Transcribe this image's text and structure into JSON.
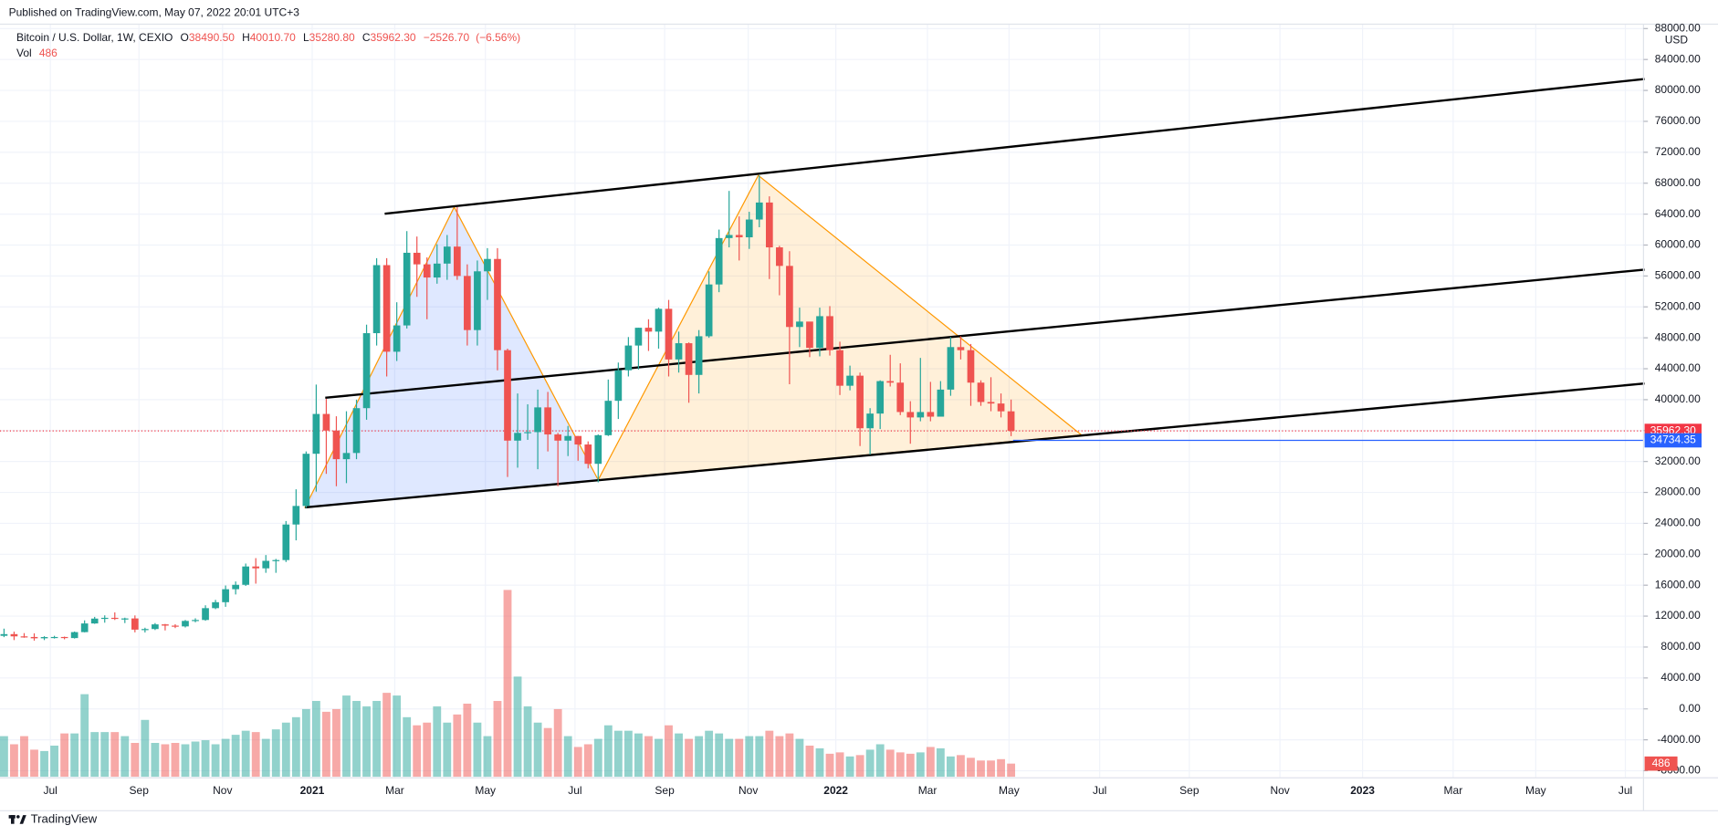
{
  "chart_data": {
    "type": "candlestick",
    "published": "Published on TradingView.com, May 07, 2022 20:01 UTC+3",
    "symbol": "Bitcoin / U.S. Dollar, 1W, CEXIO",
    "ohlc_header": [
      {
        "key": "O",
        "value": 38490.5,
        "label": "38490.50"
      },
      {
        "key": "H",
        "value": 40010.7,
        "label": "40010.70"
      },
      {
        "key": "L",
        "value": 35280.8,
        "label": "35280.80"
      },
      {
        "key": "C",
        "value": 35962.3,
        "label": "35962.30"
      }
    ],
    "change": {
      "value": -2526.7,
      "label": "−2526.70"
    },
    "change_pct": {
      "value": -6.56,
      "label": "(−6.56%)"
    },
    "volume_title": "Vol",
    "volume_last": 486,
    "currency": "USD",
    "brand": "TradingView",
    "up_color": "#26a69a",
    "down_color": "#ef5350",
    "ohlc": [
      [
        9450,
        10380,
        9280,
        9670
      ],
      [
        9670,
        9990,
        8900,
        9380
      ],
      [
        9380,
        9800,
        9200,
        9300
      ],
      [
        9300,
        9770,
        8830,
        9130
      ],
      [
        9130,
        9400,
        8900,
        9290
      ],
      [
        9290,
        9450,
        9100,
        9300
      ],
      [
        9300,
        9350,
        9000,
        9160
      ],
      [
        9160,
        10000,
        9100,
        9930
      ],
      [
        9930,
        11450,
        9900,
        11050
      ],
      [
        11050,
        11900,
        11000,
        11680
      ],
      [
        11680,
        12100,
        11150,
        11780
      ],
      [
        11780,
        12480,
        11500,
        11650
      ],
      [
        11650,
        11800,
        11100,
        11700
      ],
      [
        11700,
        12090,
        9900,
        10250
      ],
      [
        10250,
        10500,
        9880,
        10330
      ],
      [
        10330,
        11100,
        10200,
        10930
      ],
      [
        10930,
        10990,
        10150,
        10770
      ],
      [
        10770,
        10950,
        10450,
        10670
      ],
      [
        10670,
        11500,
        10530,
        11380
      ],
      [
        11380,
        11720,
        11200,
        11500
      ],
      [
        11500,
        13400,
        11400,
        13030
      ],
      [
        13030,
        14100,
        12900,
        13800
      ],
      [
        13800,
        15960,
        13200,
        15480
      ],
      [
        15480,
        16480,
        14800,
        16050
      ],
      [
        16050,
        18800,
        15900,
        18420
      ],
      [
        18420,
        19500,
        16200,
        18180
      ],
      [
        18180,
        19900,
        17600,
        19150
      ],
      [
        19150,
        19400,
        17600,
        19250
      ],
      [
        19250,
        24300,
        19000,
        23850
      ],
      [
        23850,
        28400,
        21800,
        26250
      ],
      [
        26250,
        33300,
        26000,
        33000
      ],
      [
        33000,
        41950,
        28100,
        38150
      ],
      [
        38150,
        40100,
        30400,
        36000
      ],
      [
        36000,
        37850,
        28800,
        32300
      ],
      [
        32300,
        38500,
        29200,
        33100
      ],
      [
        33100,
        40000,
        32300,
        38900
      ],
      [
        38900,
        49700,
        37400,
        48600
      ],
      [
        48600,
        58300,
        47000,
        57400
      ],
      [
        57400,
        58300,
        43000,
        46200
      ],
      [
        46200,
        52600,
        45000,
        49600
      ],
      [
        49600,
        61800,
        49200,
        59000
      ],
      [
        59000,
        61100,
        53300,
        57500
      ],
      [
        57500,
        58400,
        50400,
        55800
      ],
      [
        55800,
        60100,
        55000,
        57600
      ],
      [
        57600,
        61300,
        55500,
        59800
      ],
      [
        59800,
        64900,
        55500,
        56000
      ],
      [
        56000,
        57500,
        47000,
        49000
      ],
      [
        49000,
        58000,
        47000,
        56600
      ],
      [
        56600,
        59600,
        52900,
        58200
      ],
      [
        58200,
        59600,
        43800,
        46400
      ],
      [
        46400,
        46600,
        30000,
        34700
      ],
      [
        34700,
        40800,
        31200,
        35700
      ],
      [
        35700,
        39400,
        34800,
        35800
      ],
      [
        35800,
        41300,
        31000,
        39000
      ],
      [
        39000,
        41000,
        33300,
        35500
      ],
      [
        35500,
        35700,
        28800,
        34700
      ],
      [
        34700,
        36600,
        32700,
        35300
      ],
      [
        35300,
        35300,
        32100,
        34200
      ],
      [
        34200,
        34600,
        31100,
        31700
      ],
      [
        31700,
        35500,
        29300,
        35400
      ],
      [
        35400,
        42600,
        35300,
        39850
      ],
      [
        39850,
        44800,
        37500,
        43800
      ],
      [
        43800,
        48100,
        43000,
        47000
      ],
      [
        47000,
        49300,
        43900,
        49300
      ],
      [
        49300,
        50400,
        46300,
        48800
      ],
      [
        48800,
        51900,
        46600,
        51750
      ],
      [
        51750,
        52900,
        43000,
        45200
      ],
      [
        45200,
        48800,
        43500,
        47300
      ],
      [
        47300,
        47400,
        39600,
        43200
      ],
      [
        43200,
        49000,
        40800,
        48200
      ],
      [
        48200,
        56600,
        48000,
        54900
      ],
      [
        54900,
        62000,
        53900,
        60900
      ],
      [
        60900,
        67000,
        59700,
        61300
      ],
      [
        61300,
        63700,
        58000,
        61000
      ],
      [
        61000,
        64300,
        59500,
        63300
      ],
      [
        63300,
        69000,
        62300,
        65500
      ],
      [
        65500,
        66300,
        55600,
        59700
      ],
      [
        59700,
        59900,
        53500,
        57300
      ],
      [
        57300,
        59200,
        42000,
        49400
      ],
      [
        49400,
        51900,
        46800,
        50100
      ],
      [
        50100,
        50000,
        45500,
        46700
      ],
      [
        46700,
        51900,
        45600,
        50800
      ],
      [
        50800,
        52100,
        45700,
        46400
      ],
      [
        46400,
        47500,
        40600,
        41800
      ],
      [
        41800,
        44400,
        41200,
        43100
      ],
      [
        43100,
        43500,
        34000,
        36300
      ],
      [
        36300,
        38900,
        32900,
        38200
      ],
      [
        38200,
        42500,
        36200,
        42400
      ],
      [
        42400,
        45800,
        41700,
        42200
      ],
      [
        42200,
        44700,
        38000,
        38400
      ],
      [
        38400,
        39800,
        34300,
        37700
      ],
      [
        37700,
        45400,
        37200,
        38400
      ],
      [
        38400,
        42300,
        37200,
        37800
      ],
      [
        37800,
        42400,
        38000,
        41300
      ],
      [
        41300,
        48100,
        40500,
        46800
      ],
      [
        46800,
        48200,
        45200,
        46400
      ],
      [
        46400,
        47200,
        39200,
        42200
      ],
      [
        42200,
        42500,
        39200,
        39700
      ],
      [
        39700,
        42900,
        38500,
        39500
      ],
      [
        39500,
        40800,
        37700,
        38490
      ],
      [
        38490.5,
        40010.7,
        35280.8,
        35962.3
      ]
    ],
    "volume": [
      1500,
      1200,
      1500,
      1000,
      950,
      1150,
      1600,
      1600,
      3050,
      1650,
      1650,
      1650,
      1500,
      1250,
      2100,
      1250,
      1200,
      1250,
      1200,
      1300,
      1350,
      1200,
      1400,
      1550,
      1700,
      1650,
      1400,
      1750,
      2000,
      2200,
      2500,
      2800,
      2400,
      2500,
      3000,
      2800,
      2600,
      2800,
      3100,
      3000,
      2200,
      1900,
      2000,
      2600,
      2000,
      2300,
      2700,
      2000,
      1500,
      2800,
      6900,
      3700,
      2600,
      2000,
      1800,
      2500,
      1500,
      1100,
      1200,
      1400,
      1900,
      1700,
      1700,
      1600,
      1500,
      1400,
      1900,
      1600,
      1400,
      1500,
      1700,
      1600,
      1400,
      1400,
      1500,
      1500,
      1700,
      1500,
      1600,
      1400,
      1150,
      1050,
      850,
      900,
      750,
      800,
      1000,
      1200,
      1000,
      900,
      850,
      900,
      1100,
      1050,
      750,
      800,
      700,
      600,
      600,
      650,
      486
    ],
    "volume_lim": [
      0,
      7000
    ],
    "xlim": [
      -0.4,
      162.8
    ],
    "xticks": [
      {
        "value": 4.6,
        "label": "Jul"
      },
      {
        "value": 13.4,
        "label": "Sep"
      },
      {
        "value": 21.7,
        "label": "Nov"
      },
      {
        "value": 30.6,
        "label": "2021"
      },
      {
        "value": 38.8,
        "label": "Mar"
      },
      {
        "value": 47.8,
        "label": "May"
      },
      {
        "value": 56.7,
        "label": "Jul"
      },
      {
        "value": 65.6,
        "label": "Sep"
      },
      {
        "value": 73.9,
        "label": "Nov"
      },
      {
        "value": 82.6,
        "label": "2022"
      },
      {
        "value": 91.7,
        "label": "Mar"
      },
      {
        "value": 99.8,
        "label": "May"
      },
      {
        "value": 108.8,
        "label": "Jul"
      },
      {
        "value": 117.7,
        "label": "Sep"
      },
      {
        "value": 126.7,
        "label": "Nov"
      },
      {
        "value": 134.9,
        "label": "2023"
      },
      {
        "value": 143.9,
        "label": "Mar"
      },
      {
        "value": 152.1,
        "label": "May"
      },
      {
        "value": 161.0,
        "label": "Jul"
      }
    ],
    "ylim": [
      -8000,
      88000
    ],
    "yticks": [
      {
        "value": -8000,
        "label": "-8000.00"
      },
      {
        "value": -4000,
        "label": "-4000.00"
      },
      {
        "value": 0,
        "label": "0.00"
      },
      {
        "value": 4000,
        "label": "4000.00"
      },
      {
        "value": 8000,
        "label": "8000.00"
      },
      {
        "value": 12000,
        "label": "12000.00"
      },
      {
        "value": 16000,
        "label": "16000.00"
      },
      {
        "value": 20000,
        "label": "20000.00"
      },
      {
        "value": 24000,
        "label": "24000.00"
      },
      {
        "value": 28000,
        "label": "28000.00"
      },
      {
        "value": 32000,
        "label": "32000.00"
      },
      {
        "value": 36000,
        "label": "36000.00"
      },
      {
        "value": 40000,
        "label": "40000.00"
      },
      {
        "value": 44000,
        "label": "44000.00"
      },
      {
        "value": 48000,
        "label": "48000.00"
      },
      {
        "value": 52000,
        "label": "52000.00"
      },
      {
        "value": 56000,
        "label": "56000.00"
      },
      {
        "value": 60000,
        "label": "60000.00"
      },
      {
        "value": 64000,
        "label": "64000.00"
      },
      {
        "value": 68000,
        "label": "68000.00"
      },
      {
        "value": 72000,
        "label": "72000.00"
      },
      {
        "value": 76000,
        "label": "76000.00"
      },
      {
        "value": 80000,
        "label": "80000.00"
      },
      {
        "value": 84000,
        "label": "84000.00"
      },
      {
        "value": 88000,
        "label": "88000.00"
      }
    ],
    "grid": true,
    "channel_lines": [
      {
        "color": "#000000",
        "points": [
          [
            37.8,
            64050
          ],
          [
            162.9,
            81480
          ]
        ]
      },
      {
        "color": "#000000",
        "points": [
          [
            31.9,
            40240
          ],
          [
            162.9,
            56820
          ]
        ]
      },
      {
        "color": "#000000",
        "points": [
          [
            29.9,
            26070
          ],
          [
            162.9,
            42090
          ]
        ]
      }
    ],
    "patterns": [
      {
        "color": "#2962ff",
        "points": [
          [
            29.9,
            26070
          ],
          [
            44.7,
            64900
          ],
          [
            59.0,
            29620
          ]
        ]
      },
      {
        "color": "#ff9800",
        "points": [
          [
            59.0,
            29620
          ],
          [
            74.9,
            69010
          ],
          [
            94.8,
            48180
          ],
          [
            107.0,
            35430
          ]
        ]
      }
    ],
    "price_lines": [
      {
        "value": 35962.3,
        "label": "35962.30",
        "color": "#f23645",
        "style": "dotted"
      },
      {
        "value": 34734.35,
        "label": "34734.35",
        "color": "#2962ff",
        "style": "solid",
        "from": 100.2
      }
    ]
  }
}
